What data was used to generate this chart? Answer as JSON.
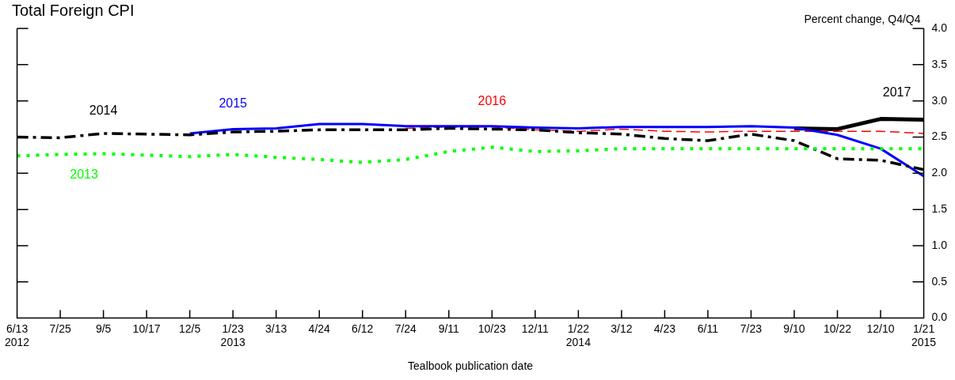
{
  "chart_data": {
    "type": "line",
    "title": "Total Foreign CPI",
    "xlabel": "Tealbook publication date",
    "ylabel": "Percent change, Q4/Q4",
    "categories": [
      "6/13\n2012",
      "7/25",
      "9/5",
      "10/17",
      "12/5",
      "1/23\n2013",
      "3/13",
      "4/24",
      "6/12",
      "7/24",
      "9/11",
      "10/23",
      "12/11",
      "1/22\n2014",
      "3/12",
      "4/23",
      "6/11",
      "7/23",
      "9/10",
      "10/22",
      "12/10",
      "1/21\n2015"
    ],
    "series": [
      {
        "name": "2013",
        "color": "#00ff00",
        "line_style": "dotted",
        "values": [
          2.24,
          2.26,
          2.27,
          2.25,
          2.23,
          2.26,
          2.22,
          2.19,
          2.15,
          2.19,
          2.3,
          2.36,
          2.3,
          2.31,
          2.34,
          2.34,
          2.34,
          2.34,
          2.34,
          2.34,
          2.34,
          2.34
        ]
      },
      {
        "name": "2014",
        "color": "#000000",
        "line_style": "dashdot",
        "values": [
          2.5,
          2.49,
          2.55,
          2.54,
          2.53,
          2.57,
          2.58,
          2.6,
          2.6,
          2.6,
          2.62,
          2.61,
          2.6,
          2.56,
          2.54,
          2.48,
          2.45,
          2.54,
          2.45,
          2.2,
          2.18,
          2.05
        ]
      },
      {
        "name": "2015",
        "color": "#0000ff",
        "line_style": "solid",
        "values": [
          null,
          null,
          null,
          null,
          2.55,
          2.61,
          2.62,
          2.68,
          2.68,
          2.65,
          2.65,
          2.65,
          2.63,
          2.62,
          2.64,
          2.64,
          2.64,
          2.65,
          2.63,
          2.53,
          2.34,
          1.96
        ]
      },
      {
        "name": "2016",
        "color": "#ff0000",
        "line_style": "dashed",
        "values": [
          null,
          null,
          null,
          null,
          null,
          null,
          null,
          null,
          null,
          2.62,
          2.64,
          2.64,
          2.6,
          2.58,
          2.61,
          2.58,
          2.57,
          2.58,
          2.58,
          2.58,
          2.58,
          2.55
        ]
      },
      {
        "name": "2017",
        "color": "#000000",
        "line_style": "solid",
        "values": [
          null,
          null,
          null,
          null,
          null,
          null,
          null,
          null,
          null,
          null,
          null,
          null,
          null,
          null,
          null,
          null,
          null,
          null,
          2.62,
          2.61,
          2.75,
          2.74
        ]
      }
    ],
    "ylim": [
      0,
      4
    ],
    "yticks": [
      {
        "value": 0,
        "label": "0.0"
      },
      {
        "value": 0.5,
        "label": "0.5"
      },
      {
        "value": 1,
        "label": "1.0"
      },
      {
        "value": 1.5,
        "label": "1.5"
      },
      {
        "value": 2,
        "label": "2.0"
      },
      {
        "value": 2.5,
        "label": "2.5"
      },
      {
        "value": 3,
        "label": "3.0"
      },
      {
        "value": 3.5,
        "label": "3.5"
      },
      {
        "value": 4,
        "label": "4.0"
      }
    ],
    "grid": false,
    "legend": false,
    "marker": "none"
  }
}
